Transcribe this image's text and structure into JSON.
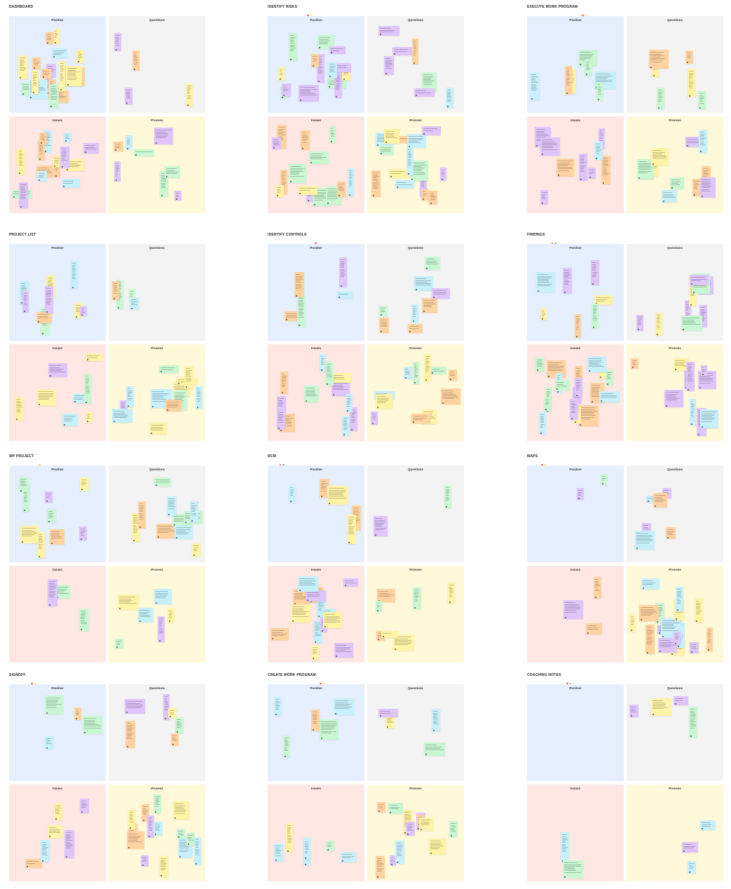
{
  "board": {
    "quadrant_labels": [
      "Positive",
      "Questions",
      "Issues",
      "Process"
    ],
    "colors": {
      "positive_bg": "#e6efff",
      "questions_bg": "#f3f3f3",
      "issues_bg": "#ffe7e3",
      "process_bg": "#fff8d9",
      "note_cyan": "#c6f0fb",
      "note_yellow": "#fff3a6",
      "note_orange": "#ffd3a0",
      "note_purple": "#dfc5fb",
      "note_green": "#c8f7d2",
      "presence_red": "#ff4d4d",
      "presence_yellow": "#ffc94d",
      "presence_green": "#5ed17a"
    },
    "sections": [
      {
        "title": "DASHBOARD",
        "presence": []
      },
      {
        "title": "IDENTIFY RISKS",
        "presence": [
          "red",
          "yellow"
        ]
      },
      {
        "title": "EXECUTE WORK PROGRAM",
        "presence": [
          "red",
          "yellow"
        ]
      },
      {
        "title": "PROJECT LIST",
        "presence": []
      },
      {
        "title": "IDENTIFY CONTROLS",
        "presence": [
          "red"
        ]
      },
      {
        "title": "FINDINGS",
        "presence": [
          "red",
          "green"
        ]
      },
      {
        "title": "WP PROJECT",
        "presence": [
          "yellow"
        ]
      },
      {
        "title": "RCM",
        "presence": [
          "red",
          "green"
        ]
      },
      {
        "title": "MAPS",
        "presence": [
          "red",
          "yellow"
        ]
      },
      {
        "title": "SIGNOFF",
        "presence": [
          "red",
          "yellow"
        ]
      },
      {
        "title": "CREATE WORK PROGRAM",
        "presence": [
          "red",
          "yellow"
        ]
      },
      {
        "title": "COACHING NOTES",
        "presence": [
          "red",
          "green"
        ]
      }
    ]
  }
}
